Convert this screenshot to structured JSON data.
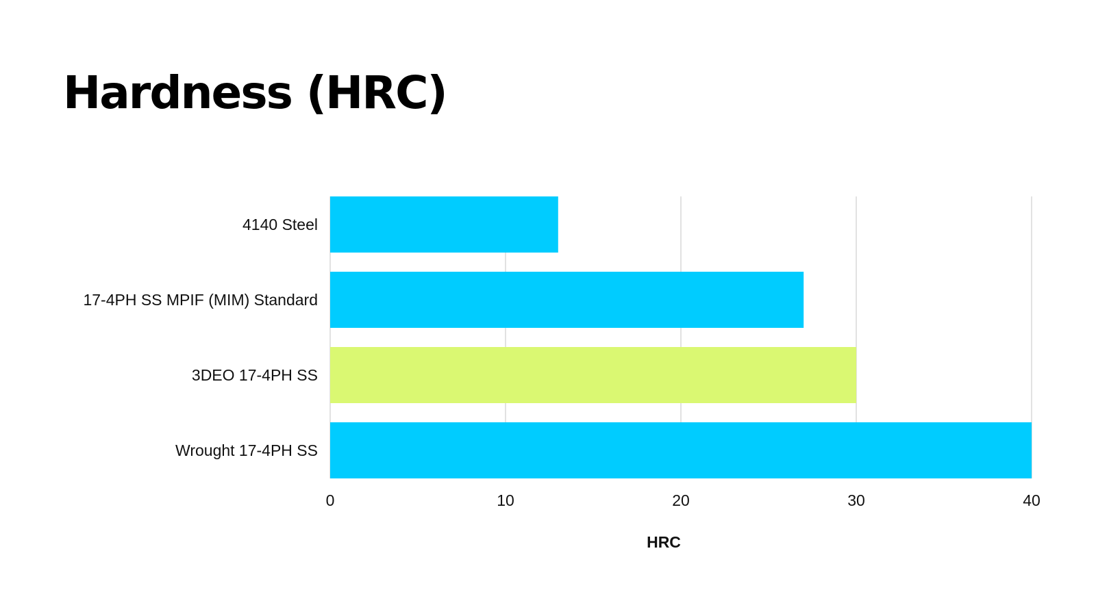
{
  "chart_data": {
    "type": "bar",
    "orientation": "horizontal",
    "title": "Hardness (HRC)",
    "xlabel": "HRC",
    "ylabel": "",
    "categories": [
      "4140 Steel",
      "17-4PH SS MPIF (MIM) Standard",
      "3DEO 17-4PH SS",
      "Wrought 17-4PH SS"
    ],
    "values": [
      13,
      27,
      30,
      40
    ],
    "bar_colors": [
      "#00CCFF",
      "#00CCFF",
      "#DAF872",
      "#00CCFF"
    ],
    "xlim": [
      0,
      40
    ],
    "ticks": [
      0,
      10,
      20,
      30,
      40
    ],
    "grid": true,
    "grid_color": "#D9D9D9",
    "legend": "none"
  }
}
